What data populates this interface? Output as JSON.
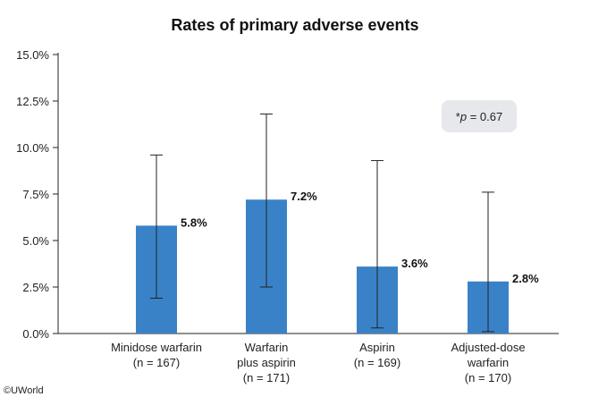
{
  "chart_data": {
    "type": "bar",
    "title": "Rates of primary adverse events",
    "xlabel": "",
    "ylabel": "",
    "ylim": [
      0,
      15
    ],
    "y_ticks": [
      "0.0%",
      "2.5%",
      "5.0%",
      "7.5%",
      "10.0%",
      "12.5%",
      "15.0%"
    ],
    "y_tick_values": [
      0,
      2.5,
      5,
      7.5,
      10,
      12.5,
      15
    ],
    "categories": [
      [
        "Minidose warfarin",
        "(n = 167)"
      ],
      [
        "Warfarin",
        "plus aspirin",
        "(n = 171)"
      ],
      [
        "Aspirin",
        "(n = 169)"
      ],
      [
        "Adjusted-dose",
        "warfarin",
        "(n = 170)"
      ]
    ],
    "values": [
      5.8,
      7.2,
      3.6,
      2.8
    ],
    "value_labels": [
      "5.8%",
      "7.2%",
      "3.6%",
      "2.8%"
    ],
    "error_low": [
      1.9,
      2.5,
      0.3,
      0.1
    ],
    "error_high": [
      9.6,
      11.8,
      9.3,
      7.6
    ],
    "bar_color": "#3a82c7",
    "annotation": {
      "prefix": "*",
      "italic": "p",
      "suffix": " = 0.67"
    },
    "copyright": "©UWorld"
  }
}
